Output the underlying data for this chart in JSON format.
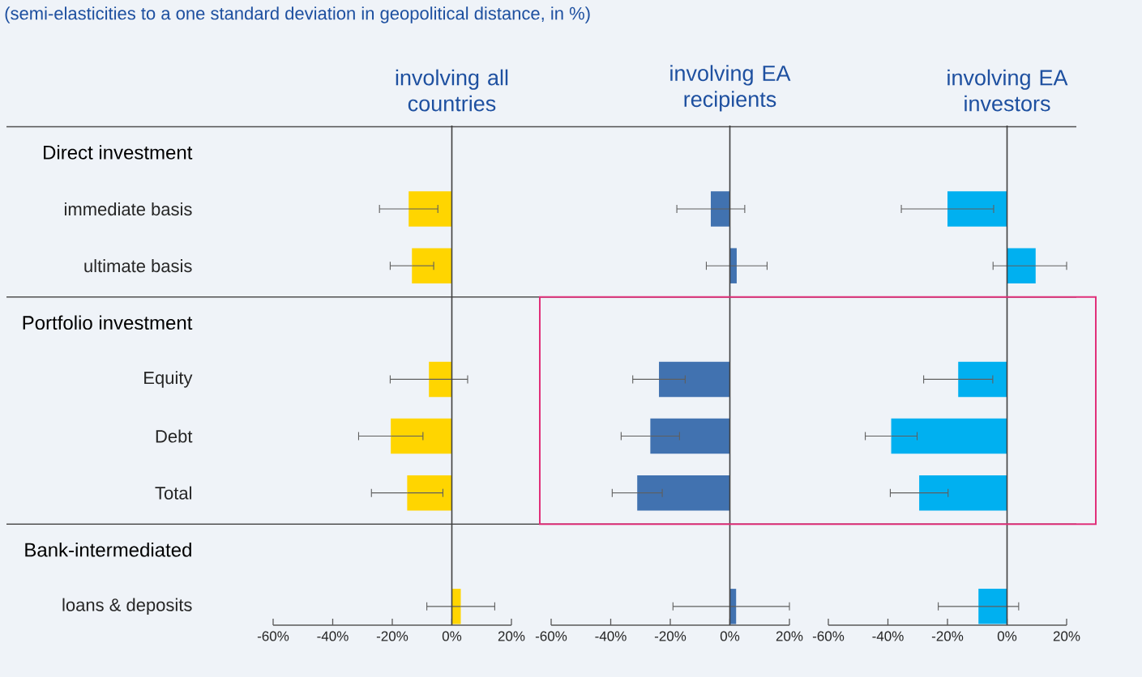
{
  "chart_data": [
    {
      "type": "bar",
      "orientation": "horizontal",
      "title": "involving all countries",
      "annotations": [
        "(semi-elasticities to a one standard deviation in geopolitical distance, in %)"
      ],
      "categories": [
        "Direct investment",
        "immediate basis",
        "ultimate basis",
        "Portfolio investment",
        "Equity",
        "Debt",
        "Total",
        "Bank-intermediated",
        "loans & deposits"
      ],
      "values": [
        null,
        -14.5,
        -13.4,
        null,
        -7.7,
        -20.5,
        -15.0,
        null,
        3.0
      ],
      "errors": [
        null,
        9.8,
        7.3,
        null,
        13,
        10.8,
        12,
        null,
        11.4
      ],
      "color": "#ffd500",
      "xlim": [
        -60,
        20
      ],
      "xticks": [
        {
          "value": -60,
          "label": "-60%"
        },
        {
          "value": -40,
          "label": "-40%"
        },
        {
          "value": -20,
          "label": "-20%"
        },
        {
          "value": 0,
          "label": "0%"
        },
        {
          "value": 20,
          "label": "20%"
        }
      ],
      "ref_lines": [
        {
          "axis": "x",
          "value": 0,
          "color": "#404040"
        }
      ]
    },
    {
      "type": "bar",
      "orientation": "horizontal",
      "title": "involving EA recipients",
      "tick_labels": "x",
      "values": [
        null,
        -6.4,
        2.3,
        null,
        -23.8,
        -26.7,
        -31.1,
        null,
        2.1
      ],
      "errors": [
        null,
        11.4,
        10.2,
        null,
        8.8,
        9.8,
        8.4,
        null,
        [
          -19.1,
          20
        ]
      ],
      "color": "#4172b0",
      "xlim": [
        -60,
        20
      ],
      "xticks": [
        {
          "value": -60,
          "label": "-60%"
        },
        {
          "value": -40,
          "label": "-40%"
        },
        {
          "value": -20,
          "label": "-20%"
        },
        {
          "value": 0,
          "label": "0%"
        },
        {
          "value": 20,
          "label": "20%"
        }
      ],
      "ref_lines": [
        {
          "axis": "x",
          "value": 0,
          "color": "#404040"
        }
      ]
    },
    {
      "type": "bar",
      "orientation": "horizontal",
      "title": "involving EA investors",
      "tick_labels": "x",
      "values": [
        null,
        -20.0,
        9.6,
        null,
        -16.4,
        -38.9,
        -29.5,
        null,
        -9.6
      ],
      "errors": [
        null,
        15.5,
        [
          -4.7,
          20
        ],
        null,
        11.6,
        8.7,
        9.7,
        null,
        13.5
      ],
      "color": "#00b0f0",
      "xlim": [
        -60,
        20
      ],
      "xticks": [
        {
          "value": -60,
          "label": "-60%"
        },
        {
          "value": -40,
          "label": "-40%"
        },
        {
          "value": -20,
          "label": "-20%"
        },
        {
          "value": 0,
          "label": "0%"
        },
        {
          "value": 20,
          "label": "20%"
        }
      ],
      "ref_lines": [
        {
          "axis": "x",
          "value": 0,
          "color": "#404040"
        }
      ]
    }
  ]
}
